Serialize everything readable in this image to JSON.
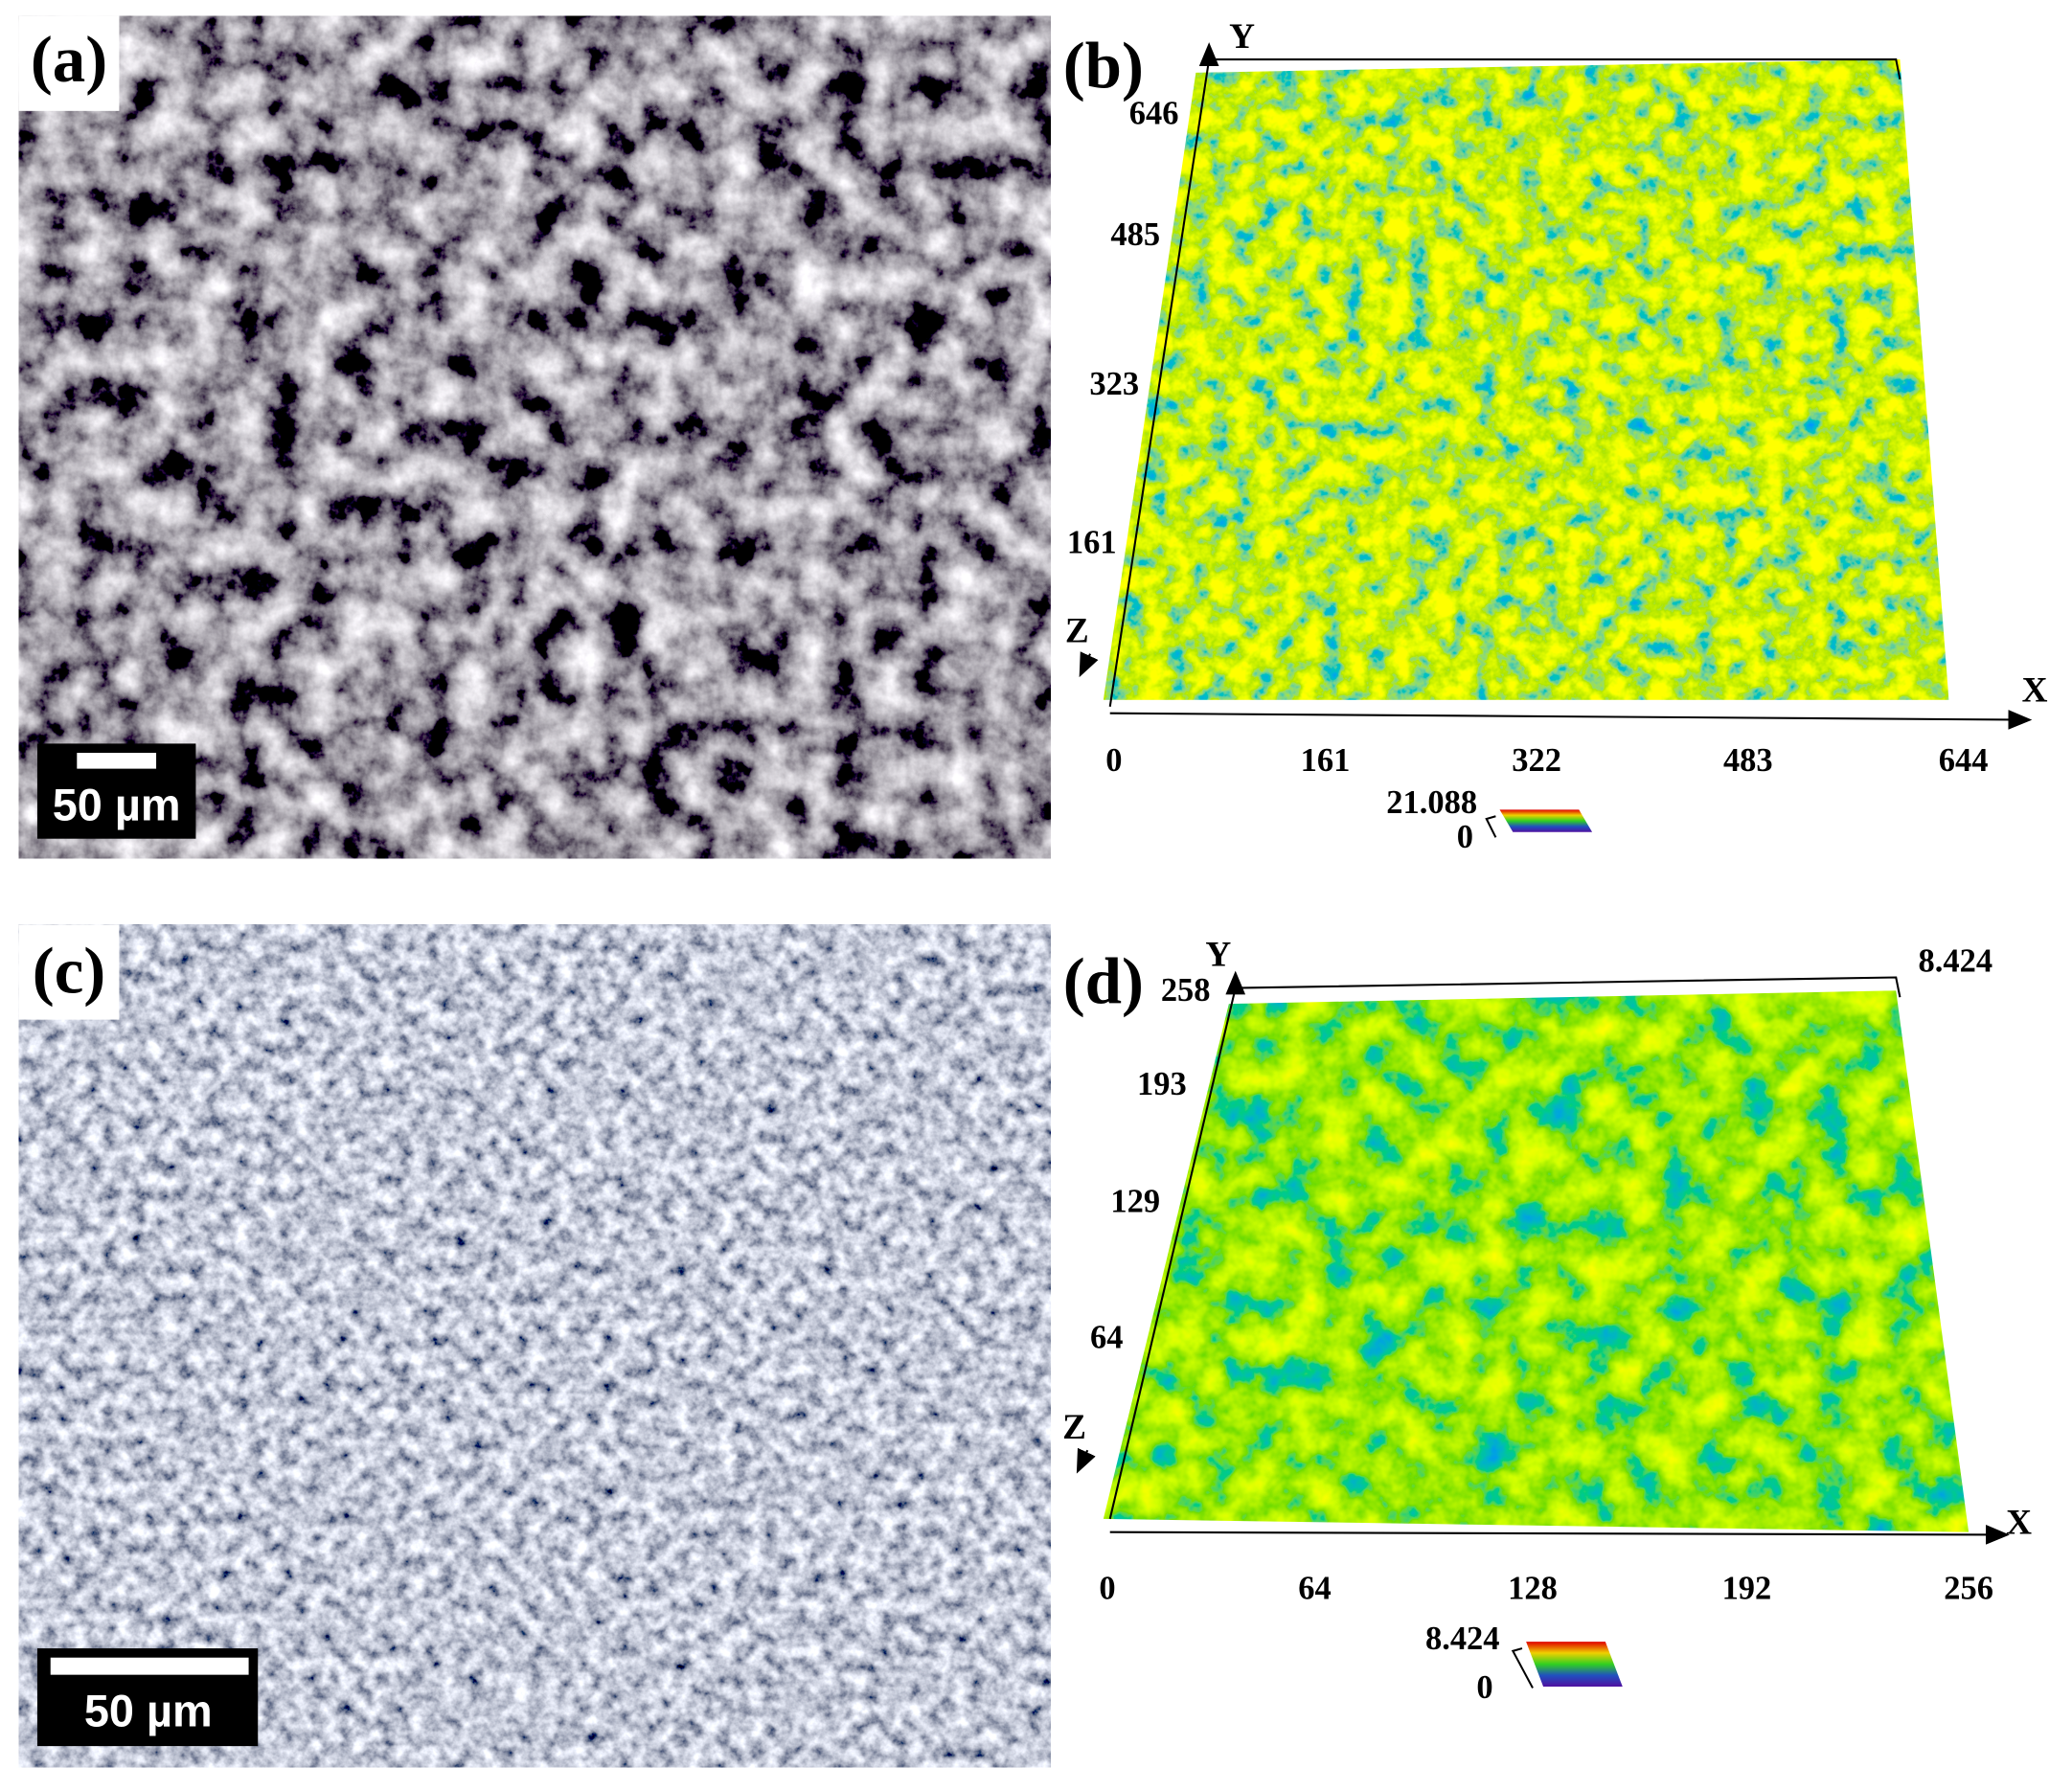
{
  "panels": [
    {
      "label": "(a)",
      "scale_bar": "50 µm"
    },
    {
      "label": "(b)",
      "y_label": "Y",
      "x_label": "X",
      "z_label": "Z",
      "yticks": [
        646,
        485,
        323,
        161
      ],
      "xticks": [
        0,
        161,
        322,
        483,
        644
      ],
      "colorbar": {
        "max": 21.088,
        "min": 0
      }
    },
    {
      "label": "(c)",
      "scale_bar": "50 µm"
    },
    {
      "label": "(d)",
      "y_label": "Y",
      "x_label": "X",
      "z_label": "Z",
      "z_max": 8.424,
      "yticks": [
        258,
        193,
        129,
        64
      ],
      "xticks": [
        0,
        64,
        128,
        192,
        256
      ],
      "colorbar": {
        "max": 8.424,
        "min": 0
      }
    }
  ]
}
